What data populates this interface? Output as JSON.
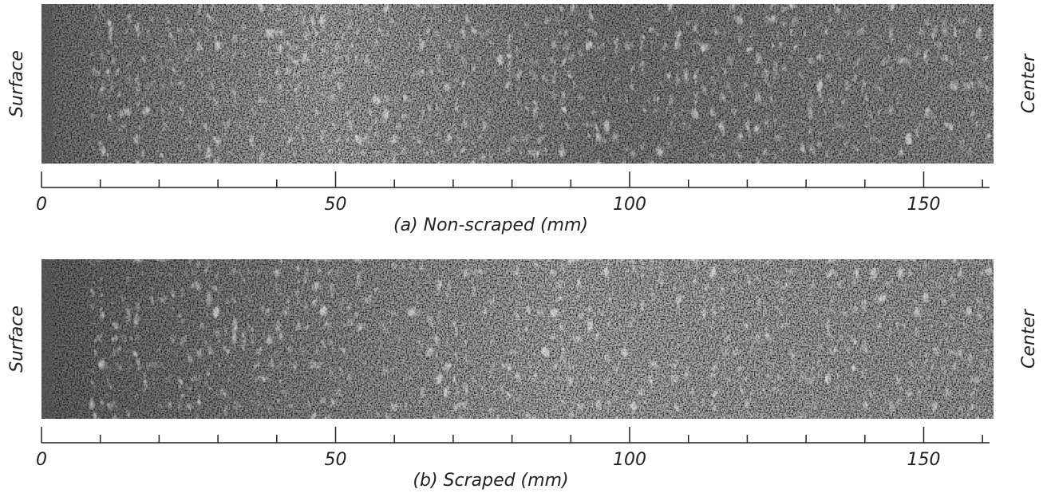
{
  "panels": [
    {
      "left_label": "Surface",
      "right_label": "Center",
      "scale_labels": [
        0,
        50,
        100,
        150
      ],
      "caption": "(a) Non-scraped (mm)"
    },
    {
      "left_label": "Surface",
      "right_label": "Center",
      "scale_labels": [
        0,
        50,
        100,
        150
      ],
      "caption": "(b) Scraped (mm)"
    }
  ]
}
